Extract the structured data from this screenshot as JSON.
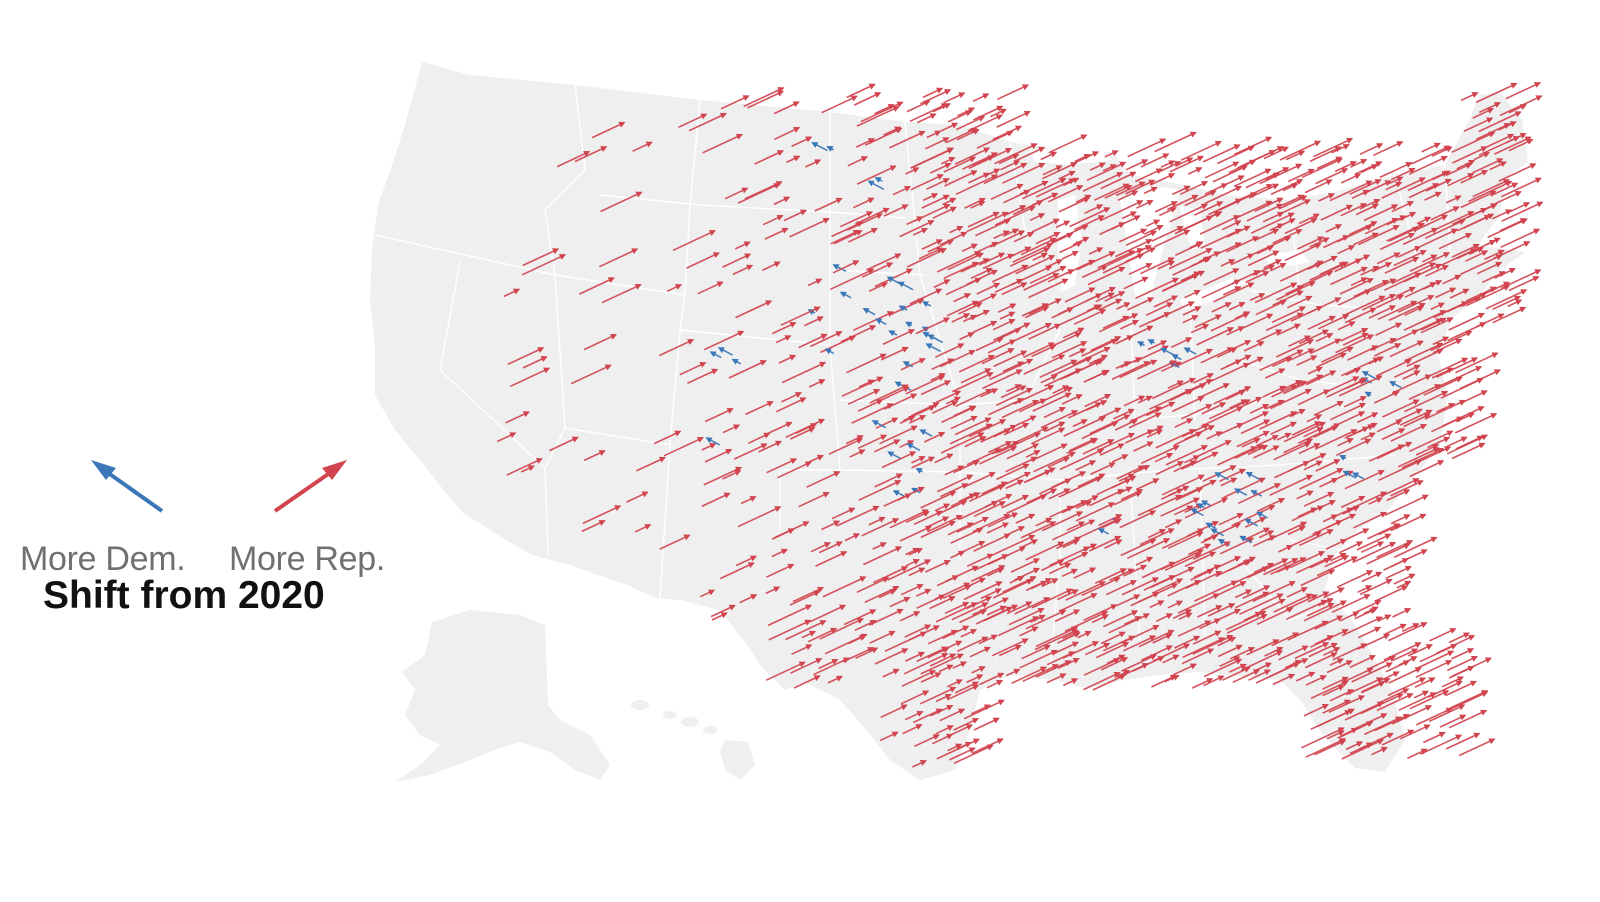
{
  "legend": {
    "dem_label": "More Dem.",
    "rep_label": "More Rep.",
    "title": "Shift from 2020"
  },
  "colors": {
    "dem": "#3a77b8",
    "rep": "#d1434e",
    "land": "#efefef",
    "border": "#ffffff",
    "background": "#ffffff"
  },
  "map": {
    "region": "United States counties",
    "arrow_meaning": "direction and size of county vote shift since 2020"
  }
}
